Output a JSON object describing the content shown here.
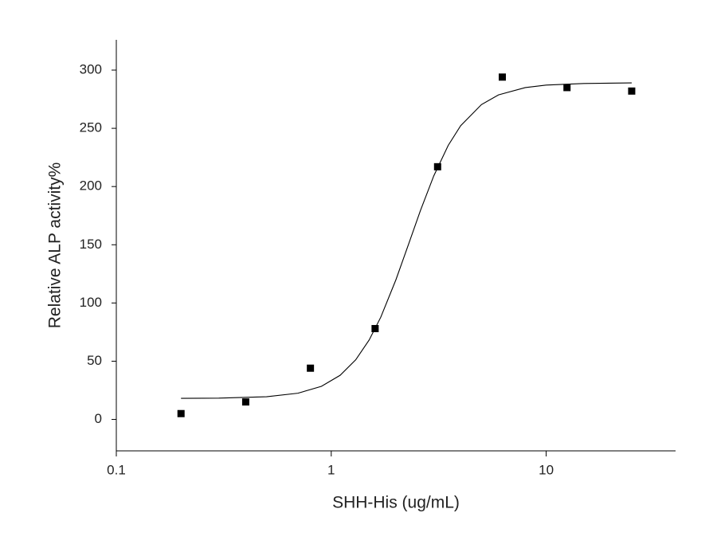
{
  "chart_data": {
    "type": "scatter",
    "x_label": "SHH-His (ug/mL)",
    "y_label": "Relative ALP activity%",
    "xscale": "log",
    "xlim": [
      0.1,
      40
    ],
    "xticks": [
      0.1,
      1,
      10
    ],
    "ylim": [
      -27,
      326
    ],
    "yticks": [
      0,
      50,
      100,
      150,
      200,
      250,
      300
    ],
    "grid": false,
    "series": [
      {
        "type": "scatter",
        "color": "#000000",
        "x": [
          0.2,
          0.4,
          0.8,
          1.6,
          3.125,
          6.25,
          12.5,
          25
        ],
        "values": [
          5,
          15,
          44,
          78,
          217,
          294,
          285,
          282
        ]
      },
      {
        "type": "line",
        "color": "#000000",
        "x": [
          0.2,
          0.3,
          0.5,
          0.7,
          0.9,
          1.1,
          1.3,
          1.5,
          1.7,
          2,
          2.3,
          2.6,
          3,
          3.5,
          4,
          5,
          6,
          8,
          10,
          15,
          25
        ],
        "values": [
          18.1,
          18.3,
          19.5,
          22.5,
          28.4,
          37.9,
          51.2,
          68.1,
          87.8,
          120,
          151.5,
          179.4,
          209.2,
          235.3,
          252.2,
          270.4,
          278.7,
          285,
          287.1,
          288.5,
          289
        ]
      }
    ]
  }
}
